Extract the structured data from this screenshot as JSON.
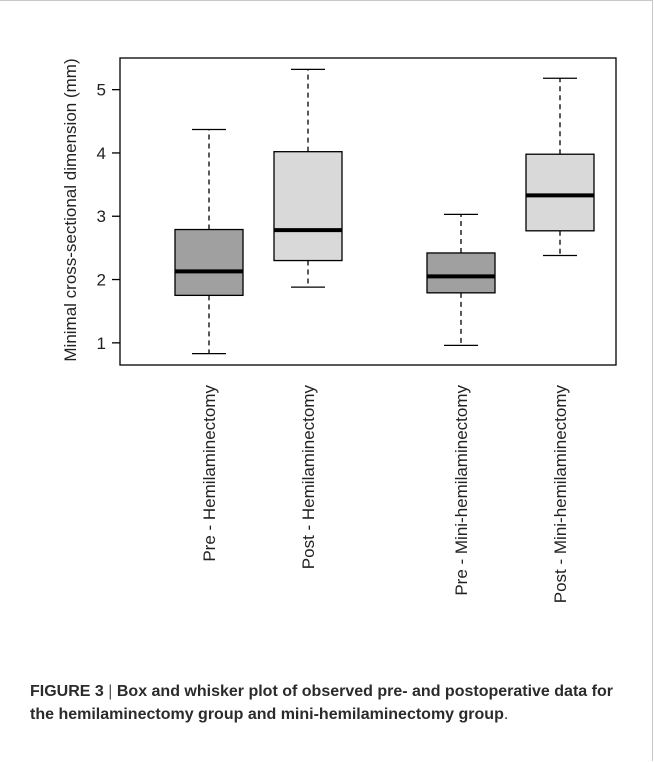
{
  "chart_data": {
    "type": "box",
    "ylabel": "Minimal cross-sectional dimension (mm)",
    "ylim": [
      0.65,
      5.5
    ],
    "yticks": [
      1,
      2,
      3,
      4,
      5
    ],
    "grid": false,
    "boxes": [
      {
        "label": "Pre - Hemilaminectomy",
        "min": 0.83,
        "q1": 1.75,
        "median": 2.13,
        "q3": 2.79,
        "max": 4.37,
        "color": "#a0a0a0"
      },
      {
        "label": "Post - Hemilaminectomy",
        "min": 1.88,
        "q1": 2.3,
        "median": 2.78,
        "q3": 4.02,
        "max": 5.32,
        "color": "#d9d9d9"
      },
      {
        "label": "Pre - Mini-hemilaminectomy",
        "min": 0.96,
        "q1": 1.79,
        "median": 2.05,
        "q3": 2.42,
        "max": 3.03,
        "color": "#a0a0a0"
      },
      {
        "label": "Post - Mini-hemilaminectomy",
        "min": 2.38,
        "q1": 2.77,
        "median": 3.33,
        "q3": 3.98,
        "max": 5.18,
        "color": "#d9d9d9"
      }
    ]
  },
  "caption": {
    "label": "FIGURE 3",
    "separator": "|",
    "text": "Box and whisker plot of observed pre- and postoperative data for the hemilaminectomy group and mini-hemilaminectomy group",
    "end": "."
  }
}
